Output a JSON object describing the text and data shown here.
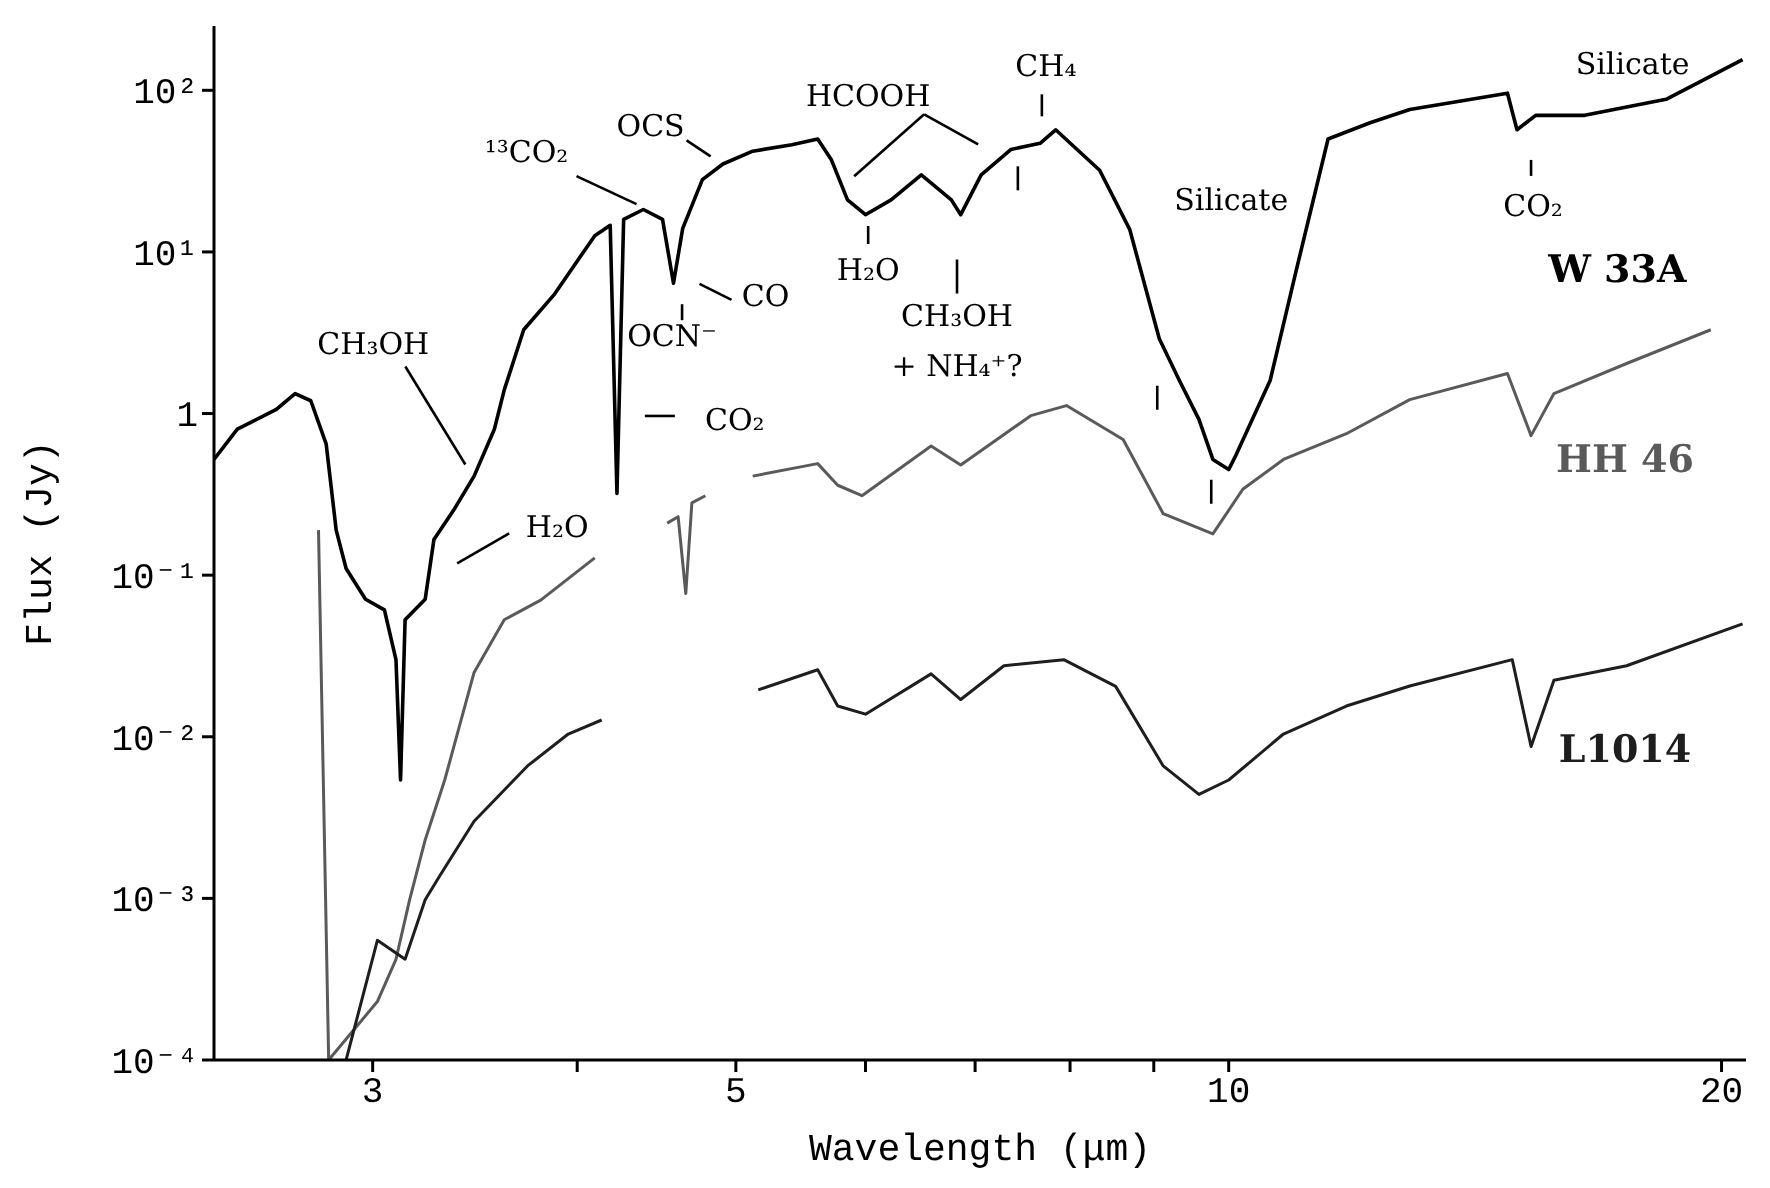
{
  "chart_data": {
    "type": "line",
    "xlabel": "Wavelength (μm)",
    "ylabel": "Flux (Jy)",
    "log": "xy",
    "xlim": [
      2.4,
      20.7
    ],
    "ylim": [
      0.0001,
      250
    ],
    "xticks": [
      3,
      {
        "value": 4,
        "label": null
      },
      5,
      {
        "value": 6,
        "label": null
      },
      {
        "value": 7,
        "label": null
      },
      {
        "value": 8,
        "label": null
      },
      {
        "value": 9,
        "label": null
      },
      10,
      20
    ],
    "yticks": [
      {
        "value": 0.0001,
        "label": "10⁻⁴"
      },
      {
        "value": 0.001,
        "label": "10⁻³"
      },
      {
        "value": 0.01,
        "label": "10⁻²"
      },
      {
        "value": 0.1,
        "label": "10⁻¹"
      },
      1,
      {
        "value": 10,
        "label": "10¹"
      },
      {
        "value": 100,
        "label": "10²"
      }
    ],
    "series": [
      {
        "name": "W 33A",
        "color": "#000000",
        "x": [
          2.4,
          2.48,
          2.62,
          2.69,
          2.75,
          2.81,
          2.85,
          2.89,
          2.97,
          3.05,
          3.1,
          3.12,
          3.14,
          3.23,
          3.27,
          3.36,
          3.46,
          3.56,
          3.61,
          3.71,
          3.87,
          4.1,
          4.19,
          4.23,
          4.27,
          4.39,
          4.51,
          4.58,
          4.64,
          4.77,
          4.91,
          5.12,
          5.41,
          5.61,
          5.72,
          5.85,
          6.0,
          6.22,
          6.49,
          6.77,
          6.86,
          7.06,
          7.36,
          7.67,
          7.84,
          8.34,
          8.7,
          9.07,
          9.33,
          9.59,
          9.78,
          10,
          10.1,
          10.6,
          11.0,
          11.3,
          11.5,
          12.2,
          12.9,
          14.8,
          15.0,
          15.4,
          16.5,
          18.5,
          20.6
        ],
        "values": [
          0.52,
          0.8,
          1.06,
          1.33,
          1.2,
          0.65,
          0.19,
          0.11,
          0.071,
          0.061,
          0.03,
          0.0054,
          0.053,
          0.071,
          0.166,
          0.25,
          0.41,
          0.8,
          1.4,
          3.3,
          5.4,
          12.6,
          14.6,
          0.32,
          15.9,
          18.3,
          15.9,
          6.4,
          14,
          28,
          35,
          42,
          46,
          50,
          37,
          21,
          17,
          21,
          30,
          21,
          17,
          30,
          43,
          47,
          57,
          32,
          13.8,
          2.9,
          1.6,
          0.92,
          0.52,
          0.45,
          0.55,
          1.6,
          7.8,
          24,
          50,
          63,
          76,
          96,
          57,
          70,
          70,
          88,
          155
        ]
      },
      {
        "name": "HH 46",
        "color": "#5a5a5a",
        "x": [
          2.78,
          2.82,
          3.02,
          3.1,
          3.16,
          3.23,
          3.32,
          3.46,
          3.61,
          3.8,
          4.1,
          4.3,
          4.54,
          4.61,
          4.66,
          4.7,
          4.79,
          5.0,
          5.12,
          5.61,
          5.77,
          5.97,
          6.58,
          6.86,
          7.57,
          7.96,
          8.62,
          9.12,
          9.78,
          10.2,
          10.8,
          11.8,
          12.9,
          14.8,
          15.3,
          15.8,
          17.5,
          19.7
        ],
        "values": [
          0.19,
          0.0001,
          0.00023,
          0.00042,
          0.00098,
          0.0023,
          0.0054,
          0.025,
          0.053,
          0.07,
          0.128,
          null,
          0.21,
          0.23,
          0.077,
          0.28,
          0.31,
          null,
          0.41,
          0.49,
          0.36,
          0.31,
          0.63,
          0.48,
          0.97,
          1.12,
          0.69,
          0.24,
          0.18,
          0.34,
          0.52,
          0.75,
          1.22,
          1.77,
          0.73,
          1.33,
          2.04,
          3.3
        ]
      },
      {
        "name": "L1014",
        "color": "#1e1e1e",
        "x": [
          2.89,
          3.02,
          3.14,
          3.23,
          3.3,
          3.46,
          3.73,
          3.95,
          4.14,
          4.6,
          5.16,
          5.61,
          5.77,
          6.0,
          6.58,
          6.86,
          7.29,
          7.93,
          8.53,
          9.12,
          9.59,
          10,
          10.8,
          11.8,
          12.9,
          14.9,
          15.3,
          15.8,
          17.5,
          20.6
        ],
        "values": [
          0.0001,
          0.00055,
          0.00042,
          0.00098,
          0.0014,
          0.003,
          0.0066,
          0.0104,
          0.0127,
          null,
          0.0195,
          0.026,
          0.0155,
          0.0138,
          0.0245,
          0.017,
          0.0275,
          0.03,
          0.0205,
          0.0066,
          0.0044,
          0.0054,
          0.0104,
          0.0155,
          0.0206,
          0.03,
          0.0087,
          0.0224,
          0.0275,
          0.05
        ]
      }
    ],
    "annotations": [
      "CH₃OH",
      "H₂O",
      "¹³CO₂",
      "OCS",
      "OCN⁻",
      "CO",
      "CO₂",
      "HCOOH",
      "CH₄",
      "H₂O",
      "CH₃OH",
      "+ NH₄⁺?",
      "Silicate",
      "Silicate",
      "CO₂"
    ]
  }
}
